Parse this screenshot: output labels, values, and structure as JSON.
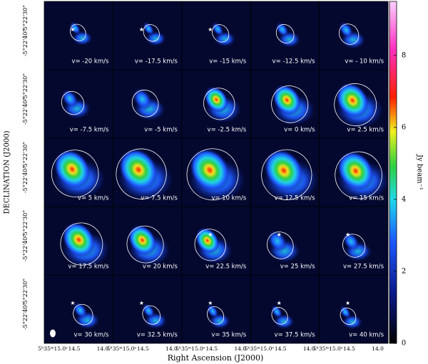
{
  "chart_data": {
    "type": "channel-map",
    "xlabel": "Right Ascension (J2000)",
    "ylabel": "DECLINATION (J2000)",
    "xticklabels": [
      "5ʰ35ᵐ15.0ˢ",
      "14.5",
      "14.0"
    ],
    "yticklabels": [
      "-5°22'30\"",
      "-5°22'40\""
    ],
    "panels": [
      "v= -20 km/s",
      "v= -17.5 km/s",
      "v= -15 km/s",
      "v= -12.5 km/s",
      "v= - 10 km/s",
      "v= -7.5 km/s",
      "v= -5 km/s",
      "v= -2.5 km/s",
      "v= 0 km/s",
      "v= 2.5 km/s",
      "v= 5 km/s",
      "v= 7.5 km/s",
      "v= 10 km/s",
      "v= 12.5 km/s",
      "v= 15 km/s",
      "v= 17.5 km/s",
      "v= 20 km/s",
      "v= 22.5 km/s",
      "v= 25 km/s",
      "v= 27.5 km/s",
      "v= 30 km/s",
      "v= 32.5 km/s",
      "v= 35 km/s",
      "v= 37.5 km/s",
      "v= 40 km/s"
    ],
    "colorbar": {
      "label": "Jy beam⁻¹",
      "lim": [
        0,
        9.5
      ],
      "ticks": [
        0,
        2,
        4,
        6,
        8
      ]
    }
  }
}
